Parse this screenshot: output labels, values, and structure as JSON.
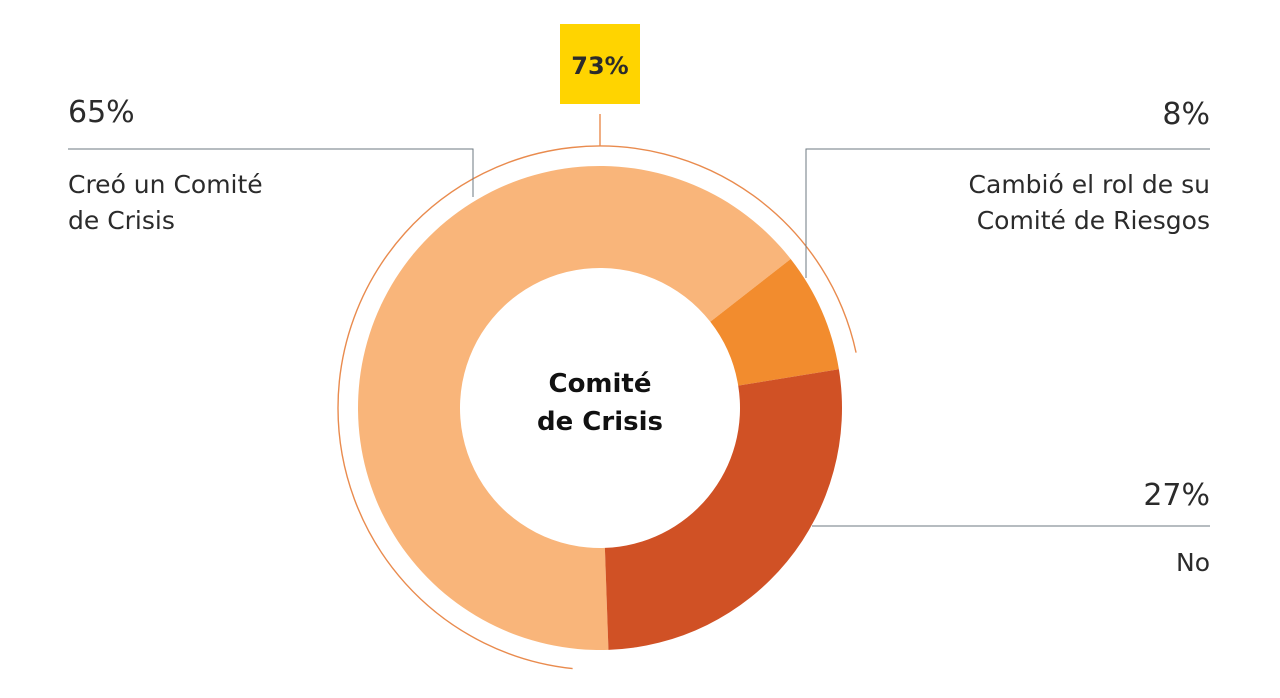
{
  "chart_data": {
    "type": "pie",
    "center_label": [
      "Comité",
      "de Crisis"
    ],
    "slices": [
      {
        "label_lines": [
          "Creó un Comité",
          "de Crisis"
        ],
        "value": 65,
        "value_label": "65%",
        "color": "#F9B57A"
      },
      {
        "label_lines": [
          "Cambió el rol de su",
          "Comité de Riesgos"
        ],
        "value": 8,
        "value_label": "8%",
        "color": "#F28C2E"
      },
      {
        "label_lines": [
          "No"
        ],
        "value": 27,
        "value_label": "27%",
        "color": "#D05125"
      }
    ],
    "highlight": {
      "value": 73,
      "value_label": "73%",
      "color": "#FFD400",
      "arc_color": "#E98B4E"
    },
    "text_color": "#2B2B2B",
    "leader_color": "#6E7A82"
  }
}
